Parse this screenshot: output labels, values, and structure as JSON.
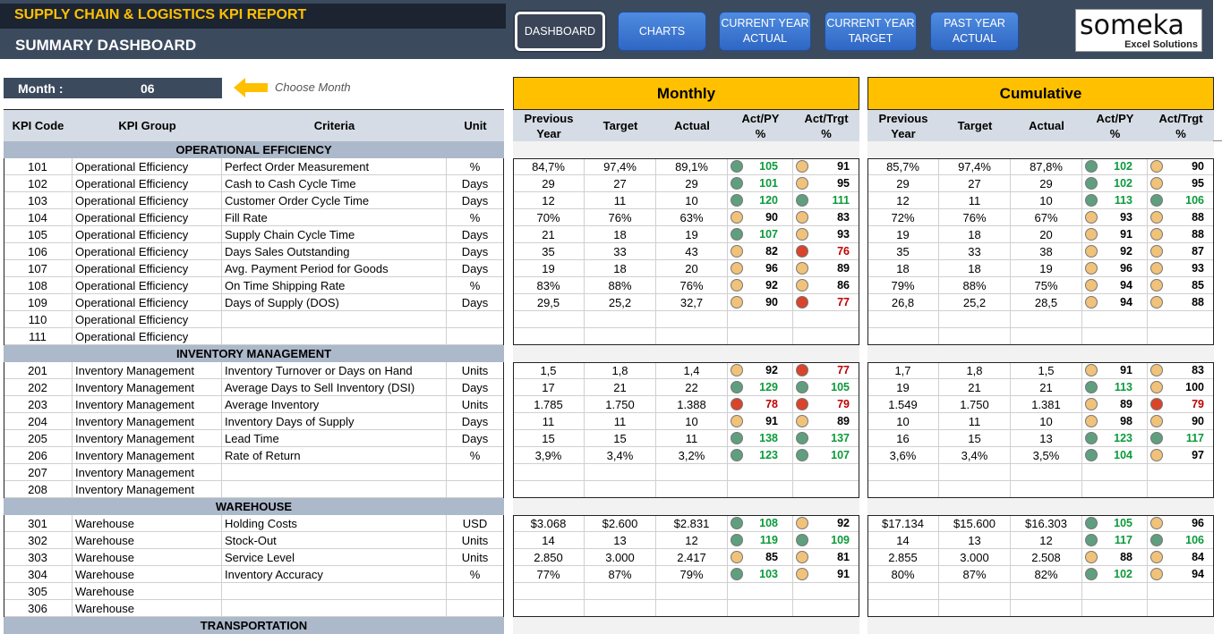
{
  "header": {
    "title": "SUPPLY CHAIN & LOGISTICS KPI REPORT",
    "subtitle": "SUMMARY DASHBOARD"
  },
  "nav": [
    {
      "label": "DASHBOARD",
      "active": true
    },
    {
      "label": "CHARTS",
      "active": false
    },
    {
      "label": "CURRENT YEAR\nACTUAL",
      "active": false
    },
    {
      "label": "CURRENT YEAR\nTARGET",
      "active": false
    },
    {
      "label": "PAST YEAR\nACTUAL",
      "active": false
    }
  ],
  "logo": {
    "text": "someka",
    "sub": "Excel Solutions"
  },
  "month": {
    "label": "Month :",
    "value": "06",
    "hint": "Choose Month"
  },
  "groups": {
    "monthly": "Monthly",
    "cumulative": "Cumulative"
  },
  "columns": {
    "left": [
      "KPI Code",
      "KPI Group",
      "Criteria",
      "Unit"
    ],
    "right": [
      "Previous\nYear",
      "Target",
      "Actual",
      "Act/PY\n%",
      "Act/Trgt\n%"
    ]
  },
  "colors": {
    "green": "#5f9f7f",
    "amber": "#f0c27a",
    "red": "#d9442a"
  },
  "sections": [
    {
      "name": "OPERATIONAL EFFICIENCY",
      "rows": [
        {
          "code": "101",
          "group": "Operational Efficiency",
          "criteria": "Perfect Order Measurement",
          "unit": "%",
          "m": [
            "84,7%",
            "97,4%",
            "89,1%",
            "green",
            "105",
            "g",
            "amber",
            "91",
            "k"
          ],
          "c": [
            "85,7%",
            "97,4%",
            "87,8%",
            "green",
            "102",
            "g",
            "amber",
            "90",
            "k"
          ]
        },
        {
          "code": "102",
          "group": "Operational Efficiency",
          "criteria": "Cash to Cash Cycle Time",
          "unit": "Days",
          "m": [
            "29",
            "27",
            "29",
            "green",
            "101",
            "g",
            "amber",
            "95",
            "k"
          ],
          "c": [
            "29",
            "27",
            "29",
            "green",
            "102",
            "g",
            "amber",
            "95",
            "k"
          ]
        },
        {
          "code": "103",
          "group": "Operational Efficiency",
          "criteria": "Customer Order Cycle Time",
          "unit": "Days",
          "m": [
            "12",
            "11",
            "10",
            "green",
            "120",
            "g",
            "green",
            "111",
            "g"
          ],
          "c": [
            "12",
            "11",
            "10",
            "green",
            "113",
            "g",
            "green",
            "106",
            "g"
          ]
        },
        {
          "code": "104",
          "group": "Operational Efficiency",
          "criteria": "Fill Rate",
          "unit": "%",
          "m": [
            "70%",
            "76%",
            "63%",
            "amber",
            "90",
            "k",
            "amber",
            "83",
            "k"
          ],
          "c": [
            "72%",
            "76%",
            "67%",
            "amber",
            "93",
            "k",
            "amber",
            "88",
            "k"
          ]
        },
        {
          "code": "105",
          "group": "Operational Efficiency",
          "criteria": "Supply Chain Cycle Time",
          "unit": "Days",
          "m": [
            "21",
            "18",
            "19",
            "green",
            "107",
            "g",
            "amber",
            "93",
            "k"
          ],
          "c": [
            "19",
            "18",
            "20",
            "amber",
            "91",
            "k",
            "amber",
            "88",
            "k"
          ]
        },
        {
          "code": "106",
          "group": "Operational Efficiency",
          "criteria": "Days Sales Outstanding",
          "unit": "Days",
          "m": [
            "35",
            "33",
            "43",
            "amber",
            "82",
            "k",
            "red",
            "76",
            "r"
          ],
          "c": [
            "35",
            "33",
            "38",
            "amber",
            "92",
            "k",
            "amber",
            "87",
            "k"
          ]
        },
        {
          "code": "107",
          "group": "Operational Efficiency",
          "criteria": "Avg. Payment Period for Goods",
          "unit": "Days",
          "m": [
            "19",
            "18",
            "20",
            "amber",
            "96",
            "k",
            "amber",
            "89",
            "k"
          ],
          "c": [
            "18",
            "18",
            "19",
            "amber",
            "96",
            "k",
            "amber",
            "93",
            "k"
          ]
        },
        {
          "code": "108",
          "group": "Operational Efficiency",
          "criteria": "On Time Shipping Rate",
          "unit": "%",
          "m": [
            "83%",
            "88%",
            "76%",
            "amber",
            "92",
            "k",
            "amber",
            "86",
            "k"
          ],
          "c": [
            "79%",
            "88%",
            "75%",
            "amber",
            "94",
            "k",
            "amber",
            "85",
            "k"
          ]
        },
        {
          "code": "109",
          "group": "Operational Efficiency",
          "criteria": "Days of Supply (DOS)",
          "unit": "Days",
          "m": [
            "29,5",
            "25,2",
            "32,7",
            "amber",
            "90",
            "k",
            "red",
            "77",
            "r"
          ],
          "c": [
            "26,8",
            "25,2",
            "28,5",
            "amber",
            "94",
            "k",
            "amber",
            "88",
            "k"
          ]
        },
        {
          "code": "110",
          "group": "Operational Efficiency",
          "criteria": "",
          "unit": "",
          "m": null,
          "c": null
        },
        {
          "code": "111",
          "group": "Operational Efficiency",
          "criteria": "",
          "unit": "",
          "m": null,
          "c": null
        }
      ]
    },
    {
      "name": "INVENTORY MANAGEMENT",
      "rows": [
        {
          "code": "201",
          "group": "Inventory Management",
          "criteria": "Inventory Turnover or Days on Hand",
          "unit": "Units",
          "m": [
            "1,5",
            "1,8",
            "1,4",
            "amber",
            "92",
            "k",
            "red",
            "77",
            "r"
          ],
          "c": [
            "1,7",
            "1,8",
            "1,5",
            "amber",
            "91",
            "k",
            "amber",
            "83",
            "k"
          ]
        },
        {
          "code": "202",
          "group": "Inventory Management",
          "criteria": "Average Days to Sell Inventory (DSI)",
          "unit": "Days",
          "m": [
            "17",
            "21",
            "22",
            "green",
            "129",
            "g",
            "green",
            "105",
            "g"
          ],
          "c": [
            "19",
            "21",
            "21",
            "green",
            "113",
            "g",
            "amber",
            "100",
            "k"
          ]
        },
        {
          "code": "203",
          "group": "Inventory Management",
          "criteria": "Average Inventory",
          "unit": "Units",
          "m": [
            "1.785",
            "1.750",
            "1.388",
            "red",
            "78",
            "r",
            "red",
            "79",
            "r"
          ],
          "c": [
            "1.549",
            "1.750",
            "1.381",
            "amber",
            "89",
            "k",
            "red",
            "79",
            "r"
          ]
        },
        {
          "code": "204",
          "group": "Inventory Management",
          "criteria": "Inventory Days of Supply",
          "unit": "Days",
          "m": [
            "11",
            "11",
            "10",
            "amber",
            "91",
            "k",
            "amber",
            "89",
            "k"
          ],
          "c": [
            "10",
            "11",
            "10",
            "amber",
            "98",
            "k",
            "amber",
            "90",
            "k"
          ]
        },
        {
          "code": "205",
          "group": "Inventory Management",
          "criteria": "Lead Time",
          "unit": "Days",
          "m": [
            "15",
            "15",
            "11",
            "green",
            "138",
            "g",
            "green",
            "137",
            "g"
          ],
          "c": [
            "16",
            "15",
            "13",
            "green",
            "123",
            "g",
            "green",
            "117",
            "g"
          ]
        },
        {
          "code": "206",
          "group": "Inventory Management",
          "criteria": "Rate of Return",
          "unit": "%",
          "m": [
            "3,9%",
            "3,4%",
            "3,2%",
            "green",
            "123",
            "g",
            "green",
            "107",
            "g"
          ],
          "c": [
            "3,6%",
            "3,4%",
            "3,5%",
            "green",
            "104",
            "g",
            "amber",
            "97",
            "k"
          ]
        },
        {
          "code": "207",
          "group": "Inventory Management",
          "criteria": "",
          "unit": "",
          "m": null,
          "c": null
        },
        {
          "code": "208",
          "group": "Inventory Management",
          "criteria": "",
          "unit": "",
          "m": null,
          "c": null
        }
      ]
    },
    {
      "name": "WAREHOUSE",
      "rows": [
        {
          "code": "301",
          "group": "Warehouse",
          "criteria": "Holding Costs",
          "unit": "USD",
          "m": [
            "$3.068",
            "$2.600",
            "$2.831",
            "green",
            "108",
            "g",
            "amber",
            "92",
            "k"
          ],
          "c": [
            "$17.134",
            "$15.600",
            "$16.303",
            "green",
            "105",
            "g",
            "amber",
            "96",
            "k"
          ]
        },
        {
          "code": "302",
          "group": "Warehouse",
          "criteria": "Stock-Out",
          "unit": "Units",
          "m": [
            "14",
            "13",
            "12",
            "green",
            "119",
            "g",
            "green",
            "109",
            "g"
          ],
          "c": [
            "14",
            "13",
            "12",
            "green",
            "117",
            "g",
            "green",
            "106",
            "g"
          ]
        },
        {
          "code": "303",
          "group": "Warehouse",
          "criteria": "Service Level",
          "unit": "Units",
          "m": [
            "2.850",
            "3.000",
            "2.417",
            "amber",
            "85",
            "k",
            "amber",
            "81",
            "k"
          ],
          "c": [
            "2.855",
            "3.000",
            "2.508",
            "amber",
            "88",
            "k",
            "amber",
            "84",
            "k"
          ]
        },
        {
          "code": "304",
          "group": "Warehouse",
          "criteria": "Inventory Accuracy",
          "unit": "%",
          "m": [
            "77%",
            "87%",
            "79%",
            "green",
            "103",
            "g",
            "amber",
            "91",
            "k"
          ],
          "c": [
            "80%",
            "87%",
            "82%",
            "green",
            "102",
            "g",
            "amber",
            "94",
            "k"
          ]
        },
        {
          "code": "305",
          "group": "Warehouse",
          "criteria": "",
          "unit": "",
          "m": null,
          "c": null
        },
        {
          "code": "306",
          "group": "Warehouse",
          "criteria": "",
          "unit": "",
          "m": null,
          "c": null
        }
      ]
    },
    {
      "name": "TRANSPORTATION",
      "rows": []
    }
  ]
}
